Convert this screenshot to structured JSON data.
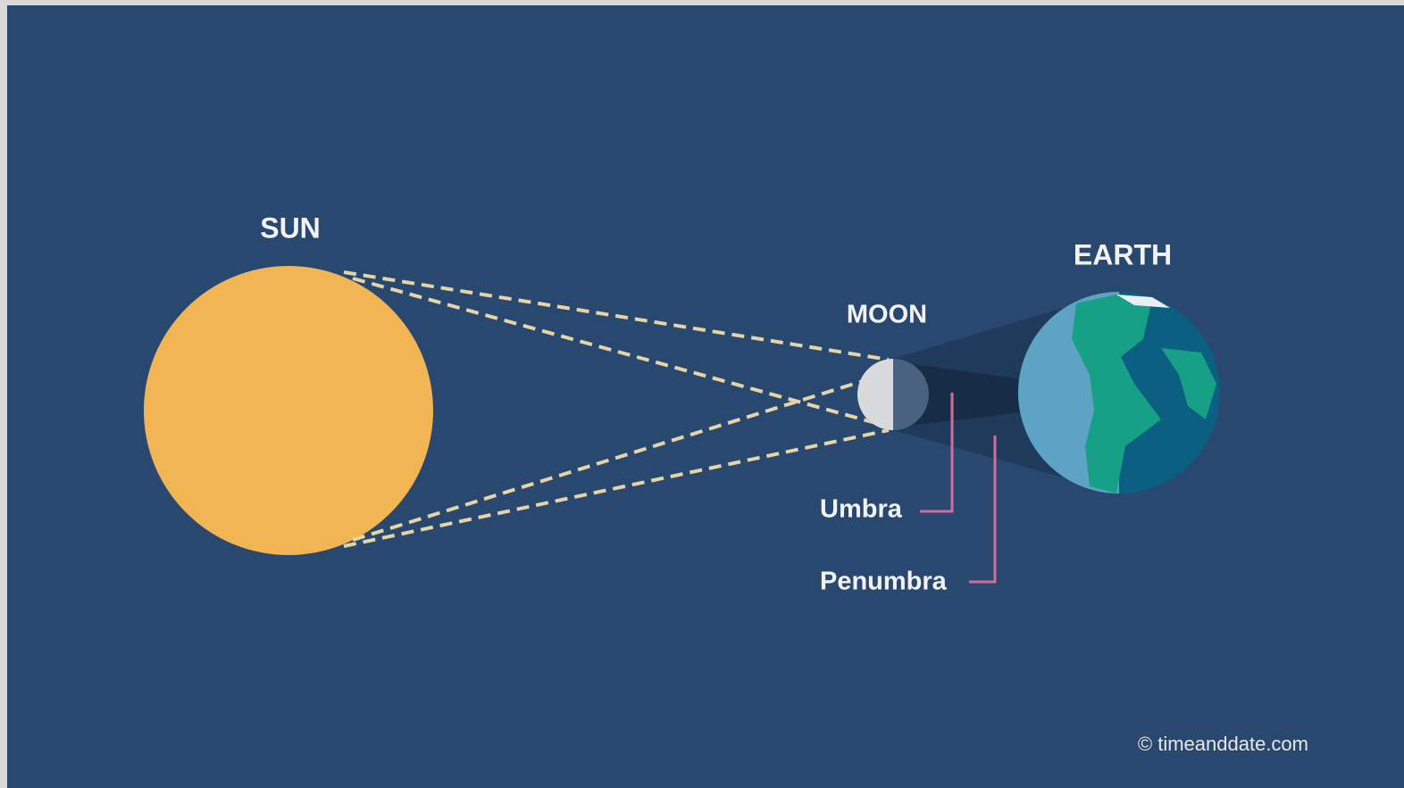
{
  "labels": {
    "sun": "SUN",
    "moon": "MOON",
    "earth": "EARTH"
  },
  "callouts": {
    "umbra": "Umbra",
    "penumbra": "Penumbra"
  },
  "credit": "© timeanddate.com"
}
